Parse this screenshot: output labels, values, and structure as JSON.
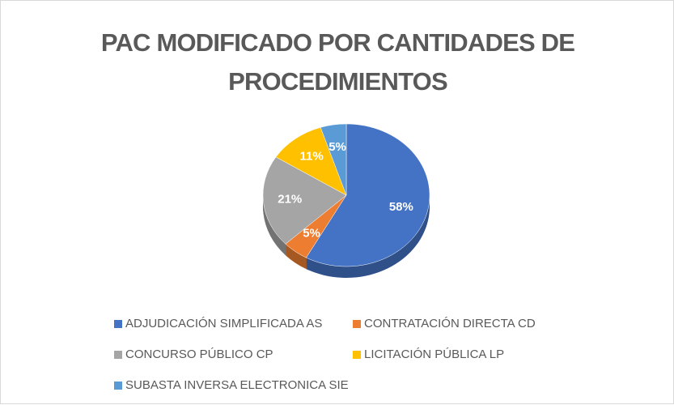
{
  "chart_data": {
    "type": "pie",
    "title": "PAC MODIFICADO POR CANTIDADES DE PROCEDIMIENTOS",
    "categories": [
      "ADJUDICACIÓN SIMPLIFICADA AS",
      "CONTRATACIÓN DIRECTA CD",
      "CONCURSO PÚBLICO CP",
      "LICITACIÓN PÚBLICA LP",
      "SUBASTA INVERSA ELECTRONICA SIE"
    ],
    "values": [
      58,
      5,
      21,
      11,
      5
    ],
    "value_labels": [
      "58%",
      "5%",
      "21%",
      "11%",
      "5%"
    ],
    "colors": [
      "#4472c4",
      "#ed7d31",
      "#a5a5a5",
      "#ffc000",
      "#5b9bd5"
    ],
    "legend": "bottom"
  }
}
